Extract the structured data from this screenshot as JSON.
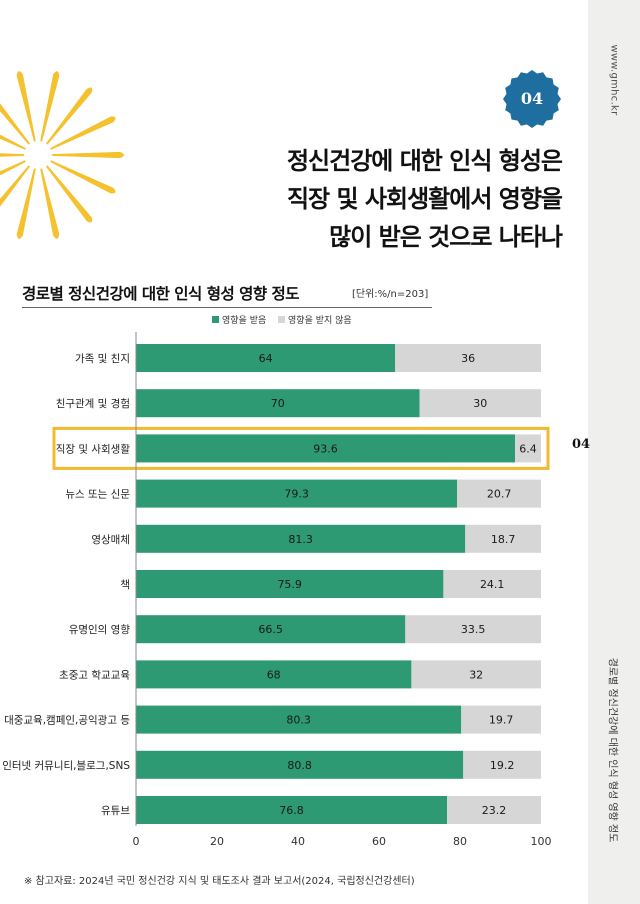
{
  "side": {
    "url": "www.gmhc.kr",
    "title": "경로별 정신건강에 대한 인식 형성 영향 정도"
  },
  "badge": {
    "number": "04"
  },
  "headline": {
    "lines": [
      "정신건강에 대한 인식 형성은",
      "직장 및 사회생활에서 영향을",
      "많이 받은 것으로 나타나"
    ]
  },
  "marker": "04",
  "footnote": "※ 참고자료: 2024년 국민 정신건강 지식 및 태도조사 결과 보고서(2024, 국립정신건강센터)",
  "colors": {
    "influenced": "#2e9a73",
    "not_influenced": "#d6d6d6",
    "highlight": "#f2b830",
    "badge": "#1f6ea0",
    "sun": "#f5c12e"
  },
  "chart_data": {
    "type": "bar",
    "orientation": "horizontal",
    "stacked": true,
    "title": "경로별 정신건강에 대한 인식 형성 영향 정도",
    "unit": "[단위:%/n=203]",
    "categories": [
      "가족 및 친지",
      "친구관계 및 경험",
      "직장 및 사회생활",
      "뉴스 또는 신문",
      "영상매체",
      "책",
      "유명인의 영향",
      "초중고 학교교육",
      "대중교육,캠페인,공익광고 등",
      "인터넷 커뮤니티,블로그,SNS",
      "유튜브"
    ],
    "series": [
      {
        "name": "영향을 받음",
        "values": [
          64,
          70,
          93.6,
          79.3,
          81.3,
          75.9,
          66.5,
          68,
          80.3,
          80.8,
          76.8
        ]
      },
      {
        "name": "영향을 받지 않음",
        "values": [
          36,
          30,
          6.4,
          20.7,
          18.7,
          24.1,
          33.5,
          32,
          19.7,
          19.2,
          23.2
        ]
      }
    ],
    "xlim": [
      0,
      100
    ],
    "xticks": [
      0,
      20,
      40,
      60,
      80,
      100
    ],
    "highlight_category": "직장 및 사회생활",
    "legend_position": "top"
  }
}
